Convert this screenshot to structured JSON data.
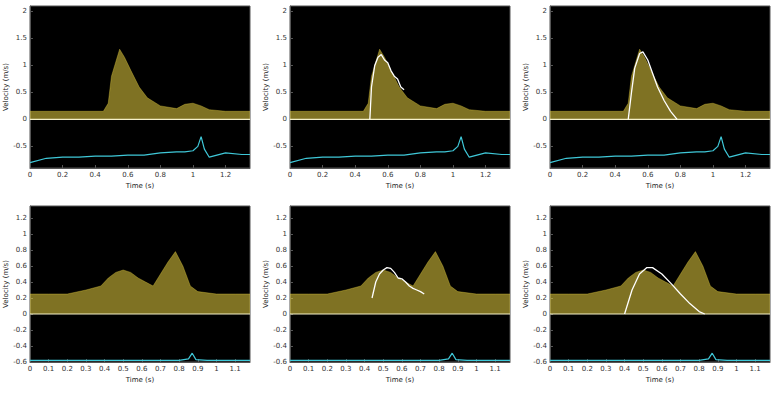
{
  "chart_data": [
    {
      "type": "line",
      "x_label": "Time (s)",
      "y_label": "Velocity (m/s)",
      "grid": false,
      "xlim": [
        0,
        1.35
      ],
      "xticks": [
        0,
        0.2,
        0.4,
        0.6,
        0.8,
        1,
        1.2
      ],
      "ylim": [
        -0.9,
        2.1
      ],
      "yticks": [
        -0.5,
        0,
        0.5,
        1,
        1.5,
        2
      ],
      "series": [
        {
          "type": "area",
          "color": "#e8d040",
          "x": [
            0,
            0.45,
            0.48,
            0.5,
            0.53,
            0.55,
            0.58,
            0.62,
            0.67,
            0.72,
            0.8,
            0.9,
            0.95,
            1.0,
            1.05,
            1.1,
            1.2,
            1.35
          ],
          "values": [
            0.15,
            0.15,
            0.3,
            0.8,
            1.1,
            1.3,
            1.15,
            0.9,
            0.6,
            0.4,
            0.25,
            0.2,
            0.28,
            0.3,
            0.25,
            0.18,
            0.15,
            0.15
          ]
        },
        {
          "type": "line",
          "line_style": "solid",
          "marker": "none",
          "color": "#f4f0c8",
          "x": [
            0,
            1.35
          ],
          "values": [
            0,
            0
          ]
        },
        {
          "type": "line",
          "line_style": "solid",
          "marker": "none",
          "color": "#3fc8d8",
          "x": [
            0,
            0.1,
            0.2,
            0.3,
            0.4,
            0.5,
            0.6,
            0.7,
            0.8,
            0.9,
            0.95,
            1.0,
            1.03,
            1.05,
            1.07,
            1.1,
            1.2,
            1.3,
            1.35
          ],
          "values": [
            -0.8,
            -0.72,
            -0.7,
            -0.7,
            -0.68,
            -0.68,
            -0.66,
            -0.66,
            -0.62,
            -0.6,
            -0.6,
            -0.58,
            -0.5,
            -0.32,
            -0.55,
            -0.7,
            -0.62,
            -0.65,
            -0.65
          ]
        }
      ]
    },
    {
      "type": "line",
      "x_label": "Time (s)",
      "y_label": "Velocity (m/s)",
      "grid": false,
      "xlim": [
        0,
        1.35
      ],
      "xticks": [
        0,
        0.2,
        0.4,
        0.6,
        0.8,
        1,
        1.2
      ],
      "ylim": [
        -0.9,
        2.1
      ],
      "yticks": [
        -0.5,
        0,
        0.5,
        1,
        1.5,
        2
      ],
      "series": [
        {
          "type": "area",
          "color": "#e8d040",
          "x": [
            0,
            0.45,
            0.48,
            0.5,
            0.53,
            0.55,
            0.58,
            0.62,
            0.67,
            0.72,
            0.8,
            0.9,
            0.95,
            1.0,
            1.05,
            1.1,
            1.2,
            1.35
          ],
          "values": [
            0.15,
            0.15,
            0.3,
            0.8,
            1.1,
            1.3,
            1.15,
            0.9,
            0.6,
            0.4,
            0.25,
            0.2,
            0.28,
            0.3,
            0.25,
            0.18,
            0.15,
            0.15
          ]
        },
        {
          "type": "line",
          "line_style": "solid",
          "marker": "none",
          "color": "#f4f0c8",
          "x": [
            0,
            1.35
          ],
          "values": [
            0,
            0
          ]
        },
        {
          "type": "line",
          "line_style": "solid",
          "marker": "none",
          "color": "#ffffff",
          "x": [
            0.49,
            0.5,
            0.52,
            0.54,
            0.56,
            0.58,
            0.6,
            0.62,
            0.64,
            0.66,
            0.68,
            0.7
          ],
          "values": [
            0,
            0.6,
            1.0,
            1.15,
            1.2,
            1.1,
            1.05,
            0.9,
            0.8,
            0.75,
            0.6,
            0.55
          ]
        },
        {
          "type": "line",
          "line_style": "solid",
          "marker": "none",
          "color": "#3fc8d8",
          "x": [
            0,
            0.1,
            0.2,
            0.3,
            0.4,
            0.5,
            0.6,
            0.7,
            0.8,
            0.9,
            0.95,
            1.0,
            1.03,
            1.05,
            1.07,
            1.1,
            1.2,
            1.3,
            1.35
          ],
          "values": [
            -0.8,
            -0.72,
            -0.7,
            -0.7,
            -0.68,
            -0.68,
            -0.66,
            -0.66,
            -0.62,
            -0.6,
            -0.6,
            -0.58,
            -0.5,
            -0.32,
            -0.55,
            -0.7,
            -0.62,
            -0.65,
            -0.65
          ]
        }
      ]
    },
    {
      "type": "line",
      "x_label": "Time (s)",
      "y_label": "Velocity (m/s)",
      "grid": false,
      "xlim": [
        0,
        1.35
      ],
      "xticks": [
        0,
        0.2,
        0.4,
        0.6,
        0.8,
        1,
        1.2
      ],
      "ylim": [
        -0.9,
        2.1
      ],
      "yticks": [
        -0.5,
        0,
        0.5,
        1,
        1.5,
        2
      ],
      "series": [
        {
          "type": "area",
          "color": "#e8d040",
          "x": [
            0,
            0.45,
            0.48,
            0.5,
            0.53,
            0.55,
            0.58,
            0.62,
            0.67,
            0.72,
            0.8,
            0.9,
            0.95,
            1.0,
            1.05,
            1.1,
            1.2,
            1.35
          ],
          "values": [
            0.15,
            0.15,
            0.3,
            0.8,
            1.1,
            1.3,
            1.15,
            0.9,
            0.6,
            0.4,
            0.25,
            0.2,
            0.28,
            0.3,
            0.25,
            0.18,
            0.15,
            0.15
          ]
        },
        {
          "type": "line",
          "line_style": "solid",
          "marker": "none",
          "color": "#f4f0c8",
          "x": [
            0,
            1.35
          ],
          "values": [
            0,
            0
          ]
        },
        {
          "type": "line",
          "line_style": "solid",
          "marker": "none",
          "color": "#ffffff",
          "x": [
            0.48,
            0.5,
            0.52,
            0.55,
            0.57,
            0.6,
            0.63,
            0.66,
            0.7,
            0.74,
            0.78
          ],
          "values": [
            0,
            0.5,
            0.95,
            1.22,
            1.25,
            1.1,
            0.85,
            0.6,
            0.35,
            0.15,
            0
          ]
        },
        {
          "type": "line",
          "line_style": "solid",
          "marker": "none",
          "color": "#3fc8d8",
          "x": [
            0,
            0.1,
            0.2,
            0.3,
            0.4,
            0.5,
            0.6,
            0.7,
            0.8,
            0.9,
            0.95,
            1.0,
            1.03,
            1.05,
            1.07,
            1.1,
            1.2,
            1.3,
            1.35
          ],
          "values": [
            -0.8,
            -0.72,
            -0.7,
            -0.7,
            -0.68,
            -0.68,
            -0.66,
            -0.66,
            -0.62,
            -0.6,
            -0.6,
            -0.58,
            -0.5,
            -0.32,
            -0.55,
            -0.7,
            -0.62,
            -0.65,
            -0.65
          ]
        }
      ]
    },
    {
      "type": "line",
      "x_label": "Time (s)",
      "y_label": "Velocity (m/s)",
      "grid": false,
      "xlim": [
        0,
        1.18
      ],
      "xticks": [
        0,
        0.1,
        0.2,
        0.3,
        0.4,
        0.5,
        0.6,
        0.7,
        0.8,
        0.9,
        1,
        1.1
      ],
      "ylim": [
        -0.6,
        1.35
      ],
      "yticks": [
        -0.6,
        -0.4,
        -0.2,
        0,
        0.2,
        0.4,
        0.6,
        0.8,
        1,
        1.2
      ],
      "series": [
        {
          "type": "area",
          "color": "#e8d040",
          "x": [
            0,
            0.1,
            0.2,
            0.3,
            0.38,
            0.42,
            0.46,
            0.5,
            0.54,
            0.58,
            0.62,
            0.66,
            0.7,
            0.74,
            0.78,
            0.82,
            0.86,
            0.9,
            1.0,
            1.1,
            1.18
          ],
          "values": [
            0.25,
            0.25,
            0.25,
            0.3,
            0.35,
            0.45,
            0.52,
            0.55,
            0.52,
            0.45,
            0.4,
            0.35,
            0.5,
            0.65,
            0.78,
            0.6,
            0.35,
            0.28,
            0.25,
            0.25,
            0.25
          ]
        },
        {
          "type": "line",
          "line_style": "solid",
          "marker": "none",
          "color": "#f4f0c8",
          "x": [
            0,
            1.18
          ],
          "values": [
            0,
            0
          ]
        },
        {
          "type": "line",
          "line_style": "solid",
          "marker": "none",
          "color": "#3fc8d8",
          "x": [
            0,
            0.2,
            0.4,
            0.6,
            0.8,
            0.85,
            0.87,
            0.89,
            0.95,
            1.1,
            1.18
          ],
          "values": [
            -0.58,
            -0.58,
            -0.58,
            -0.58,
            -0.58,
            -0.56,
            -0.49,
            -0.57,
            -0.58,
            -0.58,
            -0.58
          ]
        }
      ]
    },
    {
      "type": "line",
      "x_label": "Time (s)",
      "y_label": "Velocity (m/s)",
      "grid": false,
      "xlim": [
        0,
        1.18
      ],
      "xticks": [
        0,
        0.1,
        0.2,
        0.3,
        0.4,
        0.5,
        0.6,
        0.7,
        0.8,
        0.9,
        1,
        1.1
      ],
      "ylim": [
        -0.6,
        1.35
      ],
      "yticks": [
        -0.6,
        -0.4,
        -0.2,
        0,
        0.2,
        0.4,
        0.6,
        0.8,
        1,
        1.2
      ],
      "series": [
        {
          "type": "area",
          "color": "#e8d040",
          "x": [
            0,
            0.1,
            0.2,
            0.3,
            0.38,
            0.42,
            0.46,
            0.5,
            0.54,
            0.58,
            0.62,
            0.66,
            0.7,
            0.74,
            0.78,
            0.82,
            0.86,
            0.9,
            1.0,
            1.1,
            1.18
          ],
          "values": [
            0.25,
            0.25,
            0.25,
            0.3,
            0.35,
            0.45,
            0.52,
            0.55,
            0.52,
            0.45,
            0.4,
            0.35,
            0.5,
            0.65,
            0.78,
            0.6,
            0.35,
            0.28,
            0.25,
            0.25,
            0.25
          ]
        },
        {
          "type": "line",
          "line_style": "solid",
          "marker": "none",
          "color": "#f4f0c8",
          "x": [
            0,
            1.18
          ],
          "values": [
            0,
            0
          ]
        },
        {
          "type": "line",
          "line_style": "solid",
          "marker": "none",
          "color": "#ffffff",
          "x": [
            0.44,
            0.46,
            0.48,
            0.5,
            0.52,
            0.54,
            0.56,
            0.58,
            0.6,
            0.62,
            0.64,
            0.66,
            0.68,
            0.7,
            0.72
          ],
          "values": [
            0.2,
            0.4,
            0.5,
            0.55,
            0.58,
            0.57,
            0.52,
            0.45,
            0.44,
            0.4,
            0.35,
            0.32,
            0.3,
            0.28,
            0.25
          ]
        },
        {
          "type": "line",
          "line_style": "solid",
          "marker": "none",
          "color": "#3fc8d8",
          "x": [
            0,
            0.2,
            0.4,
            0.6,
            0.8,
            0.85,
            0.87,
            0.89,
            0.95,
            1.1,
            1.18
          ],
          "values": [
            -0.58,
            -0.58,
            -0.58,
            -0.58,
            -0.58,
            -0.56,
            -0.49,
            -0.57,
            -0.58,
            -0.58,
            -0.58
          ]
        }
      ]
    },
    {
      "type": "line",
      "x_label": "Time (s)",
      "y_label": "Velocity (m/s)",
      "grid": false,
      "xlim": [
        0,
        1.18
      ],
      "xticks": [
        0,
        0.1,
        0.2,
        0.3,
        0.4,
        0.5,
        0.6,
        0.7,
        0.8,
        0.9,
        1,
        1.1
      ],
      "ylim": [
        -0.6,
        1.35
      ],
      "yticks": [
        -0.6,
        -0.4,
        -0.2,
        0,
        0.2,
        0.4,
        0.6,
        0.8,
        1,
        1.2
      ],
      "series": [
        {
          "type": "area",
          "color": "#e8d040",
          "x": [
            0,
            0.1,
            0.2,
            0.3,
            0.38,
            0.42,
            0.46,
            0.5,
            0.54,
            0.58,
            0.62,
            0.66,
            0.7,
            0.74,
            0.78,
            0.82,
            0.86,
            0.9,
            1.0,
            1.1,
            1.18
          ],
          "values": [
            0.25,
            0.25,
            0.25,
            0.3,
            0.35,
            0.45,
            0.52,
            0.55,
            0.52,
            0.45,
            0.4,
            0.35,
            0.5,
            0.65,
            0.78,
            0.6,
            0.35,
            0.28,
            0.25,
            0.25,
            0.25
          ]
        },
        {
          "type": "line",
          "line_style": "solid",
          "marker": "none",
          "color": "#f4f0c8",
          "x": [
            0,
            1.18
          ],
          "values": [
            0,
            0
          ]
        },
        {
          "type": "line",
          "line_style": "solid",
          "marker": "none",
          "color": "#ffffff",
          "x": [
            0.4,
            0.44,
            0.48,
            0.52,
            0.55,
            0.6,
            0.65,
            0.7,
            0.75,
            0.8,
            0.83
          ],
          "values": [
            0,
            0.3,
            0.5,
            0.58,
            0.58,
            0.5,
            0.38,
            0.25,
            0.13,
            0.03,
            0
          ]
        },
        {
          "type": "line",
          "line_style": "solid",
          "marker": "none",
          "color": "#3fc8d8",
          "x": [
            0,
            0.2,
            0.4,
            0.6,
            0.8,
            0.85,
            0.87,
            0.89,
            0.95,
            1.1,
            1.18
          ],
          "values": [
            -0.58,
            -0.58,
            -0.58,
            -0.58,
            -0.58,
            -0.56,
            -0.49,
            -0.57,
            -0.58,
            -0.58,
            -0.58
          ]
        }
      ]
    }
  ]
}
